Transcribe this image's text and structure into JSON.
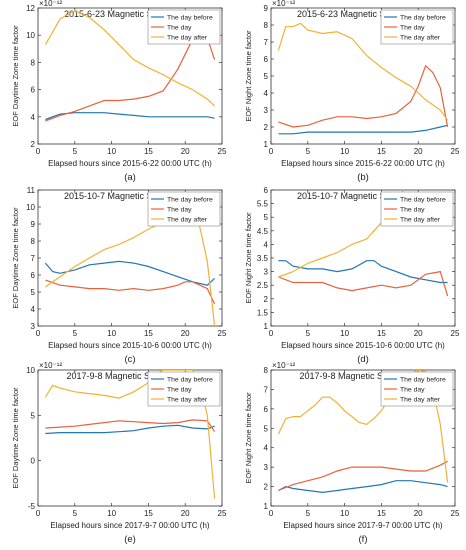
{
  "colors": {
    "before": "#1f77b4",
    "day": "#e8613a",
    "after": "#f2b134"
  },
  "chart_data": [
    {
      "type": "line",
      "panel_label": "(a)",
      "title": "2015-6-23 Magnetic Storm Event",
      "xlabel": "Elapsed hours since 2015-6-22 00:00 UTC (h)",
      "ylabel": "EOF Daytime Zone time factor",
      "scale_label": "×10⁻¹²",
      "xlim": [
        0,
        25
      ],
      "ylim": [
        2,
        12
      ],
      "xticks": [
        0,
        5,
        10,
        15,
        20,
        25
      ],
      "yticks": [
        2,
        4,
        6,
        8,
        10,
        12
      ],
      "grid": false,
      "legend_position": "top-right",
      "series": [
        {
          "name": "The day before",
          "x": [
            1,
            3,
            5,
            7,
            9,
            11,
            13,
            15,
            17,
            19,
            21,
            23,
            24
          ],
          "y": [
            3.8,
            4.2,
            4.3,
            4.3,
            4.3,
            4.2,
            4.1,
            4.0,
            4.0,
            4.0,
            4.0,
            4.0,
            3.9
          ]
        },
        {
          "name": "The day",
          "x": [
            1,
            3,
            5,
            7,
            9,
            11,
            13,
            15,
            17,
            19,
            20,
            21,
            22,
            23,
            24
          ],
          "y": [
            3.7,
            4.1,
            4.4,
            4.8,
            5.2,
            5.2,
            5.3,
            5.5,
            5.9,
            7.5,
            8.6,
            9.7,
            10.0,
            9.8,
            8.2
          ]
        },
        {
          "name": "The day after",
          "x": [
            1,
            3,
            5,
            7,
            9,
            11,
            13,
            15,
            17,
            19,
            21,
            23,
            24
          ],
          "y": [
            9.3,
            11.2,
            11.8,
            11.3,
            10.4,
            9.3,
            8.2,
            7.6,
            7.1,
            6.5,
            6.0,
            5.3,
            4.8
          ]
        }
      ]
    },
    {
      "type": "line",
      "panel_label": "(b)",
      "title": "2015-6-23 Magnetic Storm Event",
      "xlabel": "Elapsed hours since 2015-6-22 00:00 UTC (h)",
      "ylabel": "EOF Night Zone time factor",
      "scale_label": "×10⁻¹²",
      "xlim": [
        0,
        25
      ],
      "ylim": [
        1,
        9
      ],
      "xticks": [
        0,
        5,
        10,
        15,
        20,
        25
      ],
      "yticks": [
        1,
        2,
        3,
        4,
        5,
        6,
        7,
        8,
        9
      ],
      "grid": false,
      "legend_position": "top-right",
      "series": [
        {
          "name": "The day before",
          "x": [
            1,
            3,
            5,
            7,
            9,
            11,
            13,
            15,
            17,
            19,
            21,
            23,
            24
          ],
          "y": [
            1.6,
            1.6,
            1.7,
            1.7,
            1.7,
            1.7,
            1.7,
            1.7,
            1.7,
            1.7,
            1.8,
            2.0,
            2.1
          ]
        },
        {
          "name": "The day",
          "x": [
            1,
            3,
            5,
            7,
            9,
            11,
            13,
            15,
            17,
            19,
            20,
            21,
            22,
            23,
            24
          ],
          "y": [
            2.3,
            2.0,
            2.1,
            2.4,
            2.6,
            2.6,
            2.5,
            2.6,
            2.8,
            3.5,
            4.4,
            5.6,
            5.2,
            4.3,
            2.0
          ]
        },
        {
          "name": "The day after",
          "x": [
            1,
            2,
            3,
            4,
            5,
            7,
            9,
            11,
            13,
            15,
            17,
            19,
            21,
            23,
            24
          ],
          "y": [
            6.5,
            7.9,
            7.9,
            8.1,
            7.7,
            7.5,
            7.6,
            7.2,
            6.2,
            5.5,
            4.9,
            4.4,
            3.6,
            3.0,
            2.4
          ]
        }
      ]
    },
    {
      "type": "line",
      "panel_label": "(c)",
      "title": "2015-10-7 Magnetic Storm Event",
      "xlabel": "Elapsed hours since 2015-10-6 00:00 UTC (h)",
      "ylabel": "EOF Daytime Zone time factor",
      "scale_label": "",
      "xlim": [
        0,
        25
      ],
      "ylim": [
        3,
        11
      ],
      "xticks": [
        0,
        5,
        10,
        15,
        20,
        25
      ],
      "yticks": [
        3,
        4,
        5,
        6,
        7,
        8,
        9,
        10,
        11
      ],
      "grid": false,
      "legend_position": "top-right",
      "series": [
        {
          "name": "The day before",
          "x": [
            1,
            2,
            3,
            5,
            7,
            9,
            11,
            13,
            15,
            17,
            19,
            21,
            23,
            24
          ],
          "y": [
            6.7,
            6.2,
            6.1,
            6.3,
            6.6,
            6.7,
            6.8,
            6.7,
            6.5,
            6.2,
            5.9,
            5.6,
            5.4,
            5.8
          ]
        },
        {
          "name": "The day",
          "x": [
            1,
            3,
            5,
            7,
            9,
            11,
            13,
            15,
            17,
            19,
            20,
            21,
            23,
            24
          ],
          "y": [
            5.7,
            5.4,
            5.3,
            5.2,
            5.2,
            5.1,
            5.2,
            5.1,
            5.2,
            5.4,
            5.6,
            5.6,
            5.2,
            4.3
          ]
        },
        {
          "name": "The day after",
          "x": [
            1,
            3,
            5,
            7,
            9,
            11,
            13,
            15,
            17,
            19,
            21,
            22,
            23,
            24
          ],
          "y": [
            5.3,
            5.9,
            6.5,
            7.0,
            7.5,
            7.8,
            8.2,
            8.7,
            9.1,
            9.6,
            9.7,
            8.8,
            6.8,
            3.0
          ]
        }
      ]
    },
    {
      "type": "line",
      "panel_label": "(d)",
      "title": "2015-10-7 Magnetic Storm Event",
      "xlabel": "Elapsed hours since 2015-10-6 00:00 UTC (h)",
      "ylabel": "EOF Night Zone time factor",
      "scale_label": "",
      "xlim": [
        0,
        25
      ],
      "ylim": [
        1,
        6
      ],
      "xticks": [
        0,
        5,
        10,
        15,
        20,
        25
      ],
      "yticks": [
        1,
        1.5,
        2,
        2.5,
        3,
        3.5,
        4,
        4.5,
        5,
        5.5,
        6
      ],
      "grid": false,
      "legend_position": "top-right",
      "series": [
        {
          "name": "The day before",
          "x": [
            1,
            2,
            3,
            5,
            7,
            9,
            11,
            13,
            14,
            15,
            17,
            19,
            21,
            23,
            24
          ],
          "y": [
            3.4,
            3.4,
            3.2,
            3.1,
            3.1,
            3.0,
            3.1,
            3.4,
            3.4,
            3.2,
            3.0,
            2.8,
            2.7,
            2.6,
            2.6
          ]
        },
        {
          "name": "The day",
          "x": [
            1,
            3,
            5,
            7,
            9,
            11,
            13,
            15,
            17,
            19,
            21,
            23,
            24
          ],
          "y": [
            2.8,
            2.6,
            2.6,
            2.6,
            2.4,
            2.3,
            2.4,
            2.5,
            2.4,
            2.5,
            2.9,
            3.0,
            2.1
          ]
        },
        {
          "name": "The day after",
          "x": [
            1,
            3,
            5,
            7,
            9,
            11,
            13,
            14,
            15,
            16,
            17,
            18
          ],
          "y": [
            2.8,
            3.0,
            3.3,
            3.5,
            3.7,
            4.0,
            4.2,
            4.5,
            4.8,
            5.2,
            5.6,
            6.0
          ]
        }
      ]
    },
    {
      "type": "line",
      "panel_label": "(e)",
      "title": "2017-9-8 Magnetic Storm Event",
      "xlabel": "Elapsed hours since 2017-9-7 00:00 UTC (h)",
      "ylabel": "EOF Daytime Zone time factor",
      "scale_label": "×10⁻¹²",
      "xlim": [
        0,
        25
      ],
      "ylim": [
        -5,
        10
      ],
      "xticks": [
        0,
        5,
        10,
        15,
        20,
        25
      ],
      "yticks": [
        -5,
        0,
        5,
        10
      ],
      "grid": false,
      "legend_position": "top-right",
      "series": [
        {
          "name": "The day before",
          "x": [
            1,
            3,
            5,
            7,
            9,
            11,
            13,
            15,
            17,
            19,
            21,
            23,
            24
          ],
          "y": [
            3.0,
            3.1,
            3.1,
            3.1,
            3.1,
            3.2,
            3.3,
            3.6,
            3.8,
            3.9,
            3.6,
            3.5,
            3.8
          ]
        },
        {
          "name": "The day",
          "x": [
            1,
            3,
            5,
            7,
            9,
            11,
            13,
            15,
            17,
            19,
            21,
            23,
            24
          ],
          "y": [
            3.6,
            3.7,
            3.8,
            4.0,
            4.2,
            4.4,
            4.3,
            4.2,
            4.1,
            4.2,
            4.5,
            4.4,
            3.2
          ]
        },
        {
          "name": "The day after",
          "x": [
            1,
            2,
            3,
            5,
            7,
            9,
            11,
            13,
            15,
            16,
            17,
            19,
            21,
            22,
            23,
            24
          ],
          "y": [
            7.0,
            8.3,
            8.0,
            7.6,
            7.4,
            7.2,
            6.9,
            7.6,
            8.6,
            9.5,
            10.0,
            10.0,
            10.0,
            8.5,
            5.0,
            -4.2
          ]
        }
      ]
    },
    {
      "type": "line",
      "panel_label": "(f)",
      "title": "2017-9-8 Magnetic Storm Event",
      "xlabel": "Elapsed hours since 2017-9-7 00:00 UTC (h)",
      "ylabel": "EOF Night Zone time factor",
      "scale_label": "×10⁻¹²",
      "xlim": [
        0,
        25
      ],
      "ylim": [
        1,
        8
      ],
      "xticks": [
        0,
        5,
        10,
        15,
        20,
        25
      ],
      "yticks": [
        1,
        2,
        3,
        4,
        5,
        6,
        7,
        8
      ],
      "grid": false,
      "legend_position": "top-right",
      "series": [
        {
          "name": "The day before",
          "x": [
            1,
            2,
            3,
            5,
            7,
            9,
            11,
            13,
            15,
            17,
            19,
            21,
            23,
            24
          ],
          "y": [
            1.8,
            2.0,
            1.9,
            1.8,
            1.7,
            1.8,
            1.9,
            2.0,
            2.1,
            2.3,
            2.3,
            2.2,
            2.1,
            2.0
          ]
        },
        {
          "name": "The day",
          "x": [
            1,
            3,
            5,
            7,
            9,
            11,
            13,
            15,
            17,
            19,
            21,
            23,
            24
          ],
          "y": [
            1.8,
            2.1,
            2.3,
            2.5,
            2.8,
            3.0,
            3.0,
            3.0,
            2.9,
            2.8,
            2.8,
            3.1,
            3.3
          ]
        },
        {
          "name": "The day after",
          "x": [
            1,
            2,
            3,
            4,
            5,
            6,
            7,
            8,
            9,
            10,
            11,
            12,
            13,
            14,
            15,
            16,
            17,
            18,
            19,
            20,
            21,
            22,
            23,
            24
          ],
          "y": [
            4.7,
            5.5,
            5.6,
            5.6,
            5.9,
            6.2,
            6.6,
            6.6,
            6.3,
            5.9,
            5.6,
            5.3,
            5.2,
            5.5,
            5.9,
            6.5,
            7.0,
            7.4,
            7.8,
            8.0,
            7.9,
            7.0,
            5.2,
            2.2
          ]
        }
      ]
    }
  ]
}
